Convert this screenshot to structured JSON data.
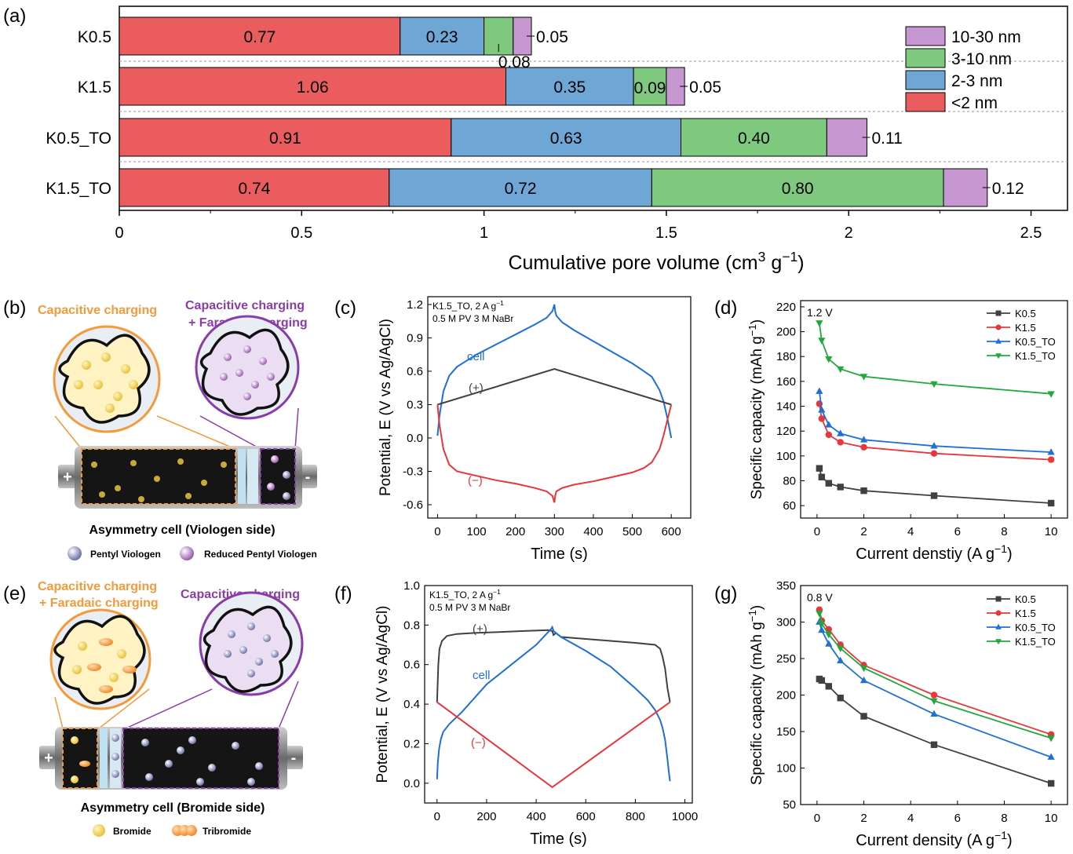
{
  "panel_labels": {
    "a": "(a)",
    "b": "(b)",
    "c": "(c)",
    "d": "(d)",
    "e": "(e)",
    "f": "(f)",
    "g": "(g)"
  },
  "colors": {
    "lt2": "#EB5C5E",
    "d2_3": "#6EA6D6",
    "d3_10": "#7FC97F",
    "d10_30": "#C797D2",
    "k05": "#404040",
    "k15": "#E8363B",
    "k05to": "#1F6FD8",
    "k15to": "#22A83C",
    "orange": "#F39A3A",
    "purple": "#8A3CA8"
  },
  "chart_data": [
    {
      "id": "a",
      "type": "bar",
      "orientation": "horizontal-stacked",
      "categories": [
        "K0.5",
        "K1.5",
        "K0.5_TO",
        "K1.5_TO"
      ],
      "series": [
        {
          "name": "<2 nm",
          "values": [
            0.77,
            1.06,
            0.91,
            0.74
          ],
          "labels": [
            "0.77",
            "1.06",
            "0.91",
            "0.74"
          ]
        },
        {
          "name": "2-3 nm",
          "values": [
            0.23,
            0.35,
            0.63,
            0.72
          ],
          "labels": [
            "0.23",
            "0.35",
            "0.63",
            "0.72"
          ]
        },
        {
          "name": "3-10 nm",
          "values": [
            0.08,
            0.09,
            0.4,
            0.8
          ],
          "labels": [
            "0.08",
            "0.09",
            "0.40",
            "0.80"
          ]
        },
        {
          "name": "10-30 nm",
          "values": [
            0.05,
            0.05,
            0.11,
            0.12
          ],
          "labels": [
            "0.05",
            "0.05",
            "0.11",
            "0.12"
          ]
        }
      ],
      "legend_order": [
        "10-30 nm",
        "3-10 nm",
        "2-3 nm",
        "<2 nm"
      ],
      "xlabel_main": "Cumulative pore volume (cm",
      "xlabel_sup1": "3",
      "xlabel_mid": " g",
      "xlabel_sup2": "−1",
      "xlabel_end": ")",
      "xlim": [
        0,
        2.6
      ],
      "xticks": [
        "0",
        "0.5",
        "1",
        "1.5",
        "2",
        "2.5"
      ],
      "legend_position": "top-right"
    },
    {
      "id": "c",
      "type": "line",
      "annotation1": "K1.5_TO, 2 A g",
      "annotation1_sup": "−1",
      "annotation2": "0.5 M PV 3 M NaBr",
      "ylabel": "Potential, E (V vs Ag/AgCl)",
      "xlabel": "Time (s)",
      "xlim": [
        -25,
        650
      ],
      "ylim": [
        -0.72,
        1.27
      ],
      "xticks": [
        "0",
        "100",
        "200",
        "300",
        "400",
        "500",
        "600"
      ],
      "yticks": [
        "-0.6",
        "-0.3",
        "0.0",
        "0.3",
        "0.6",
        "0.9",
        "1.2"
      ],
      "series": [
        {
          "name": "cell",
          "x": [
            0,
            5,
            15,
            30,
            50,
            100,
            150,
            200,
            250,
            280,
            295,
            300,
            302,
            305,
            320,
            350,
            400,
            450,
            500,
            530,
            550,
            570,
            580,
            590,
            600
          ],
          "y": [
            0.02,
            0.2,
            0.42,
            0.56,
            0.64,
            0.75,
            0.84,
            0.93,
            1.02,
            1.08,
            1.14,
            1.2,
            1.14,
            1.1,
            1.04,
            0.97,
            0.87,
            0.77,
            0.67,
            0.6,
            0.55,
            0.43,
            0.33,
            0.18,
            0.0
          ]
        },
        {
          "name": "(+)",
          "x": [
            0,
            300,
            600
          ],
          "y": [
            0.3,
            0.62,
            0.3
          ]
        },
        {
          "name": "(−)",
          "x": [
            0,
            5,
            15,
            30,
            50,
            100,
            150,
            200,
            250,
            280,
            295,
            300,
            302,
            305,
            320,
            350,
            400,
            450,
            500,
            530,
            550,
            570,
            580,
            590,
            600
          ],
          "y": [
            0.3,
            0.12,
            -0.1,
            -0.24,
            -0.3,
            -0.34,
            -0.38,
            -0.41,
            -0.45,
            -0.48,
            -0.52,
            -0.58,
            -0.52,
            -0.48,
            -0.45,
            -0.42,
            -0.39,
            -0.35,
            -0.31,
            -0.27,
            -0.22,
            -0.1,
            0.02,
            0.16,
            0.3
          ]
        }
      ]
    },
    {
      "id": "d",
      "type": "line",
      "annotation": "1.2 V",
      "ylabel_main": "Specific capacity (mAh g",
      "ylabel_sup": "−1",
      "ylabel_end": ")",
      "xlabel_main": "Current denstiy (A g",
      "xlabel_sup": "−1",
      "xlabel_end": ")",
      "xlim": [
        -0.7,
        10.7
      ],
      "ylim": [
        50,
        225
      ],
      "xticks": [
        0,
        2,
        4,
        6,
        8,
        10
      ],
      "yticks": [
        60,
        80,
        100,
        120,
        140,
        160,
        180,
        200,
        220
      ],
      "x": [
        0.1,
        0.2,
        0.5,
        1,
        2,
        5,
        10
      ],
      "series": [
        {
          "name": "K0.5",
          "values": [
            90,
            83,
            78,
            75,
            72,
            68,
            62
          ],
          "marker": "square"
        },
        {
          "name": "K1.5",
          "values": [
            142,
            130,
            117,
            111,
            107,
            102,
            97
          ],
          "marker": "circle"
        },
        {
          "name": "K0.5_TO",
          "values": [
            152,
            137,
            125,
            118,
            113,
            108,
            103
          ],
          "marker": "triangle-up"
        },
        {
          "name": "K1.5_TO",
          "values": [
            207,
            193,
            178,
            170,
            164,
            158,
            150
          ],
          "marker": "triangle-down"
        }
      ],
      "legend_position": "top-right"
    },
    {
      "id": "f",
      "type": "line",
      "annotation1": "K1.5_TO, 2 A g",
      "annotation1_sup": "−1",
      "annotation2": "0.5 M PV 3 M NaBr",
      "ylabel": "Potential, E (V vs Ag/AgCl)",
      "xlabel": "Time (s)",
      "xlim": [
        -50,
        1030
      ],
      "ylim": [
        -0.1,
        1.0
      ],
      "xticks": [
        "0",
        "200",
        "400",
        "600",
        "800",
        "1000"
      ],
      "yticks": [
        "0.0",
        "0.2",
        "0.4",
        "0.6",
        "0.8",
        "1.0"
      ],
      "series": [
        {
          "name": "(+)",
          "x": [
            0,
            5,
            10,
            20,
            40,
            80,
            150,
            250,
            350,
            450,
            465,
            470,
            480,
            500,
            600,
            700,
            800,
            880,
            900,
            910,
            920,
            930,
            940
          ],
          "y": [
            0.41,
            0.6,
            0.68,
            0.72,
            0.745,
            0.755,
            0.76,
            0.765,
            0.77,
            0.775,
            0.77,
            0.75,
            0.76,
            0.74,
            0.73,
            0.72,
            0.71,
            0.7,
            0.68,
            0.64,
            0.58,
            0.48,
            0.41
          ]
        },
        {
          "name": "cell",
          "x": [
            0,
            3,
            8,
            15,
            25,
            50,
            100,
            200,
            300,
            400,
            460,
            465,
            470,
            500,
            600,
            700,
            800,
            850,
            880,
            900,
            910,
            920,
            930,
            935,
            940
          ],
          "y": [
            0.02,
            0.1,
            0.17,
            0.22,
            0.26,
            0.3,
            0.36,
            0.5,
            0.6,
            0.7,
            0.78,
            0.79,
            0.77,
            0.74,
            0.67,
            0.59,
            0.48,
            0.42,
            0.37,
            0.32,
            0.28,
            0.22,
            0.12,
            0.06,
            0.01
          ]
        },
        {
          "name": "(−)",
          "x": [
            0,
            465,
            940
          ],
          "y": [
            0.41,
            -0.02,
            0.41
          ]
        }
      ]
    },
    {
      "id": "g",
      "type": "line",
      "annotation": "0.8 V",
      "ylabel_main": "Specific capacity (mAh g",
      "ylabel_sup": "−1",
      "ylabel_end": ")",
      "xlabel_main": "Current density (A g",
      "xlabel_sup": "−1",
      "xlabel_end": ")",
      "xlim": [
        -0.7,
        10.7
      ],
      "ylim": [
        50,
        350
      ],
      "xticks": [
        0,
        2,
        4,
        6,
        8,
        10
      ],
      "yticks": [
        50,
        100,
        150,
        200,
        250,
        300,
        350
      ],
      "x": [
        0.1,
        0.2,
        0.5,
        1,
        2,
        5,
        10
      ],
      "series": [
        {
          "name": "K0.5",
          "values": [
            222,
            220,
            212,
            196,
            171,
            132,
            79
          ],
          "marker": "square"
        },
        {
          "name": "K1.5",
          "values": [
            317,
            302,
            290,
            269,
            241,
            200,
            146
          ],
          "marker": "circle"
        },
        {
          "name": "K0.5_TO",
          "values": [
            300,
            289,
            270,
            247,
            220,
            174,
            115
          ],
          "marker": "triangle-up"
        },
        {
          "name": "K1.5_TO",
          "values": [
            312,
            298,
            283,
            264,
            237,
            192,
            141
          ],
          "marker": "triangle-down"
        }
      ],
      "legend_position": "top-right"
    }
  ],
  "diagram_b": {
    "title_left": "Capacitive charging",
    "title_right_1": "Capacitive charging",
    "title_right_2": "+ Faradaic charging",
    "cell_label": "Asymmetry cell (Viologen side)",
    "legend1": "Pentyl Viologen",
    "legend2": "Reduced Pentyl Viologen",
    "plus": "+",
    "minus": "-"
  },
  "diagram_e": {
    "title_left_1": "Capacitive charging",
    "title_left_2": "+ Faradaic charging",
    "title_right": "Capacitive charging",
    "cell_label": "Asymmetry cell (Bromide side)",
    "legend1": "Bromide",
    "legend2": "Tribromide",
    "plus": "+",
    "minus": "-"
  }
}
